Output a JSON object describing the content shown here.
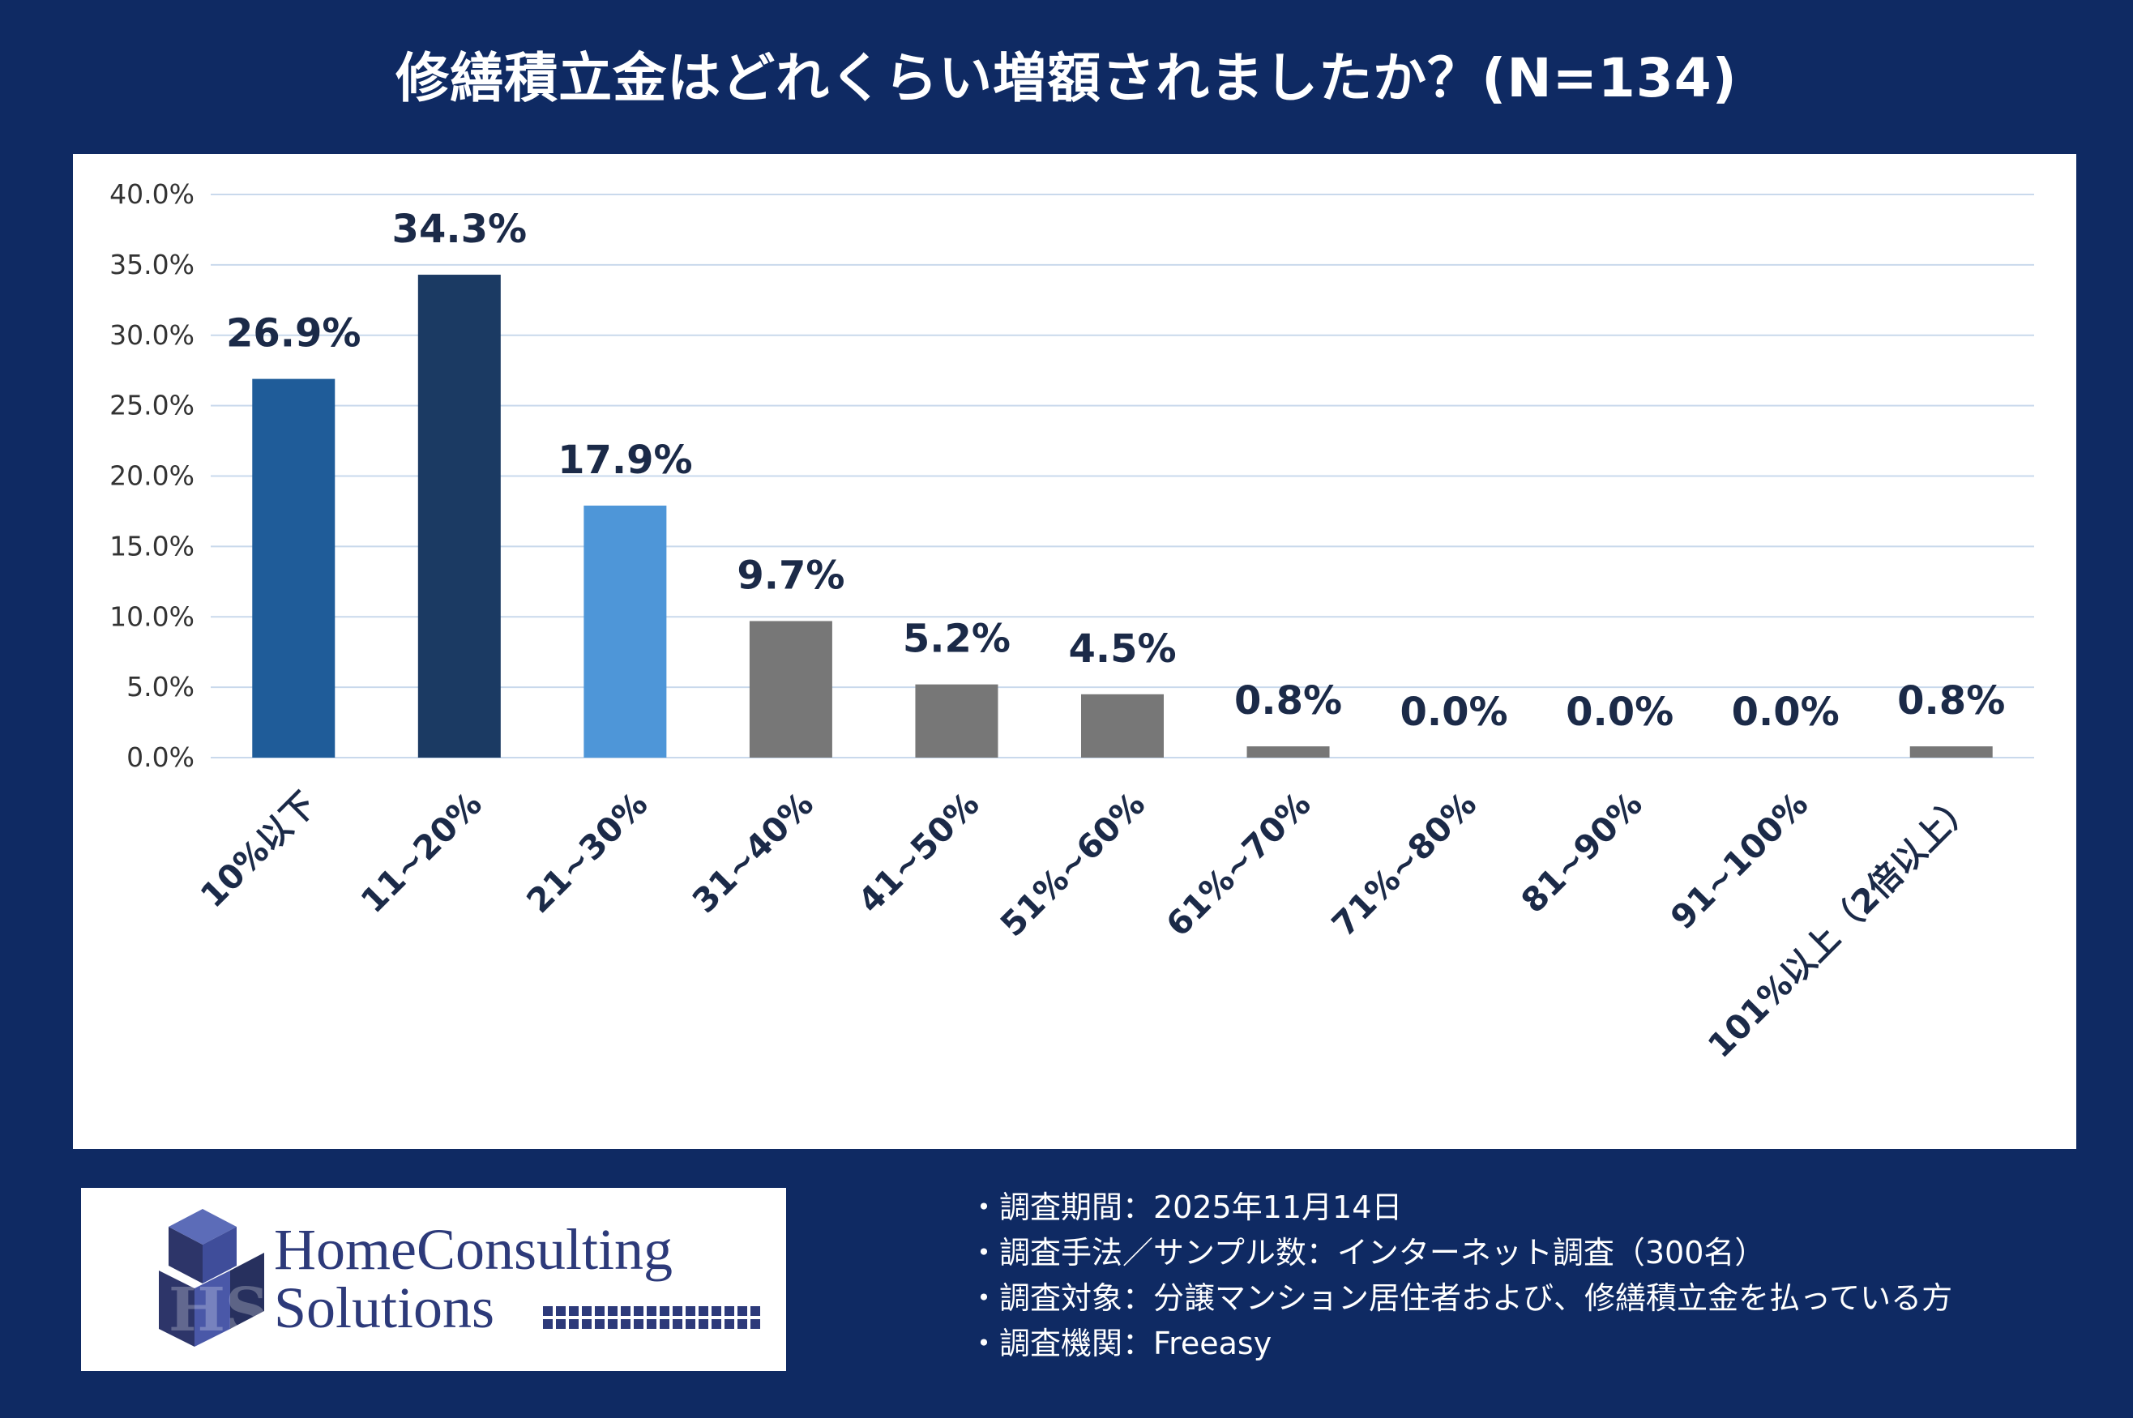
{
  "title": "修繕積立金はどれくらい増額されましたか？(N=134)",
  "colors": {
    "background": "#0f2a63",
    "grid": "#c9d9ec",
    "bar_dark_blue": "#1f5c99",
    "bar_navy": "#1b3a63",
    "bar_light_blue": "#4e96d8",
    "bar_gray": "#777777"
  },
  "chart_data": {
    "type": "bar",
    "title": "修繕積立金はどれくらい増額されましたか？(N=134)",
    "xlabel": "",
    "ylabel": "",
    "ylim": [
      0,
      40
    ],
    "yticks": [
      0,
      5,
      10,
      15,
      20,
      25,
      30,
      35,
      40
    ],
    "ytick_labels": [
      "0.0%",
      "5.0%",
      "10.0%",
      "15.0%",
      "20.0%",
      "25.0%",
      "30.0%",
      "35.0%",
      "40.0%"
    ],
    "grid": true,
    "legend": "none",
    "categories": [
      "10%以下",
      "11~20%",
      "21~30%",
      "31~40%",
      "41~50%",
      "51%~60%",
      "61%~70%",
      "71%~80%",
      "81~90%",
      "91~100%",
      "101%以上（2倍以上）"
    ],
    "values": [
      26.9,
      34.3,
      17.9,
      9.7,
      5.2,
      4.5,
      0.8,
      0.0,
      0.0,
      0.0,
      0.8
    ],
    "data_labels": [
      "26.9%",
      "34.3%",
      "17.9%",
      "9.7%",
      "5.2%",
      "4.5%",
      "0.8%",
      "0.0%",
      "0.0%",
      "0.0%",
      "0.8%"
    ],
    "bar_colors": [
      "#1f5c99",
      "#1b3a63",
      "#4e96d8",
      "#777777",
      "#777777",
      "#777777",
      "#777777",
      "#777777",
      "#777777",
      "#777777",
      "#777777"
    ]
  },
  "logo": {
    "line1": "HomeConsulting",
    "line2": "Solutions",
    "monogram": "HS"
  },
  "notes": [
    "・調査期間：2025年11月14日",
    "・調査手法／サンプル数：インターネット調査（300名）",
    "・調査対象：分譲マンション居住者および、修繕積立金を払っている方",
    "・調査機関：Freeasy"
  ]
}
